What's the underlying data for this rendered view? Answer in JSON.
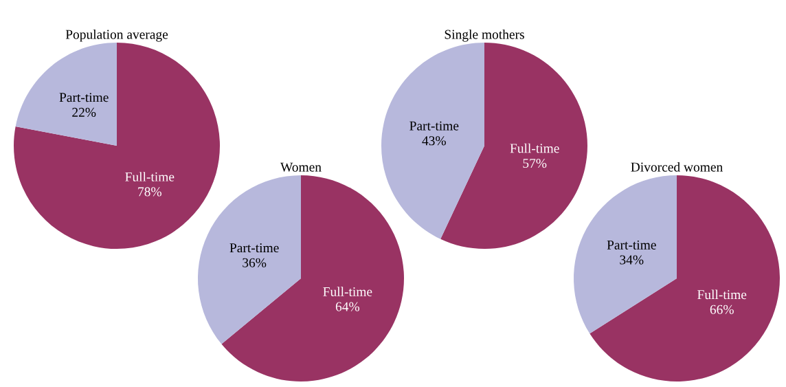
{
  "chart_data": [
    {
      "type": "pie",
      "title": "Population average",
      "categories": [
        "Full-time",
        "Part-time"
      ],
      "values": [
        78,
        22
      ],
      "colors": [
        "#993363",
        "#b7b8dc"
      ],
      "value_labels": [
        "78%",
        "22%"
      ]
    },
    {
      "type": "pie",
      "title": "Women",
      "categories": [
        "Full-time",
        "Part-time"
      ],
      "values": [
        64,
        36
      ],
      "colors": [
        "#993363",
        "#b7b8dc"
      ],
      "value_labels": [
        "64%",
        "36%"
      ]
    },
    {
      "type": "pie",
      "title": "Single mothers",
      "categories": [
        "Full-time",
        "Part-time"
      ],
      "values": [
        57,
        43
      ],
      "colors": [
        "#993363",
        "#b7b8dc"
      ],
      "value_labels": [
        "57%",
        "43%"
      ]
    },
    {
      "type": "pie",
      "title": "Divorced women",
      "categories": [
        "Full-time",
        "Part-time"
      ],
      "values": [
        66,
        34
      ],
      "colors": [
        "#993363",
        "#b7b8dc"
      ],
      "value_labels": [
        "66%",
        "34%"
      ]
    }
  ]
}
